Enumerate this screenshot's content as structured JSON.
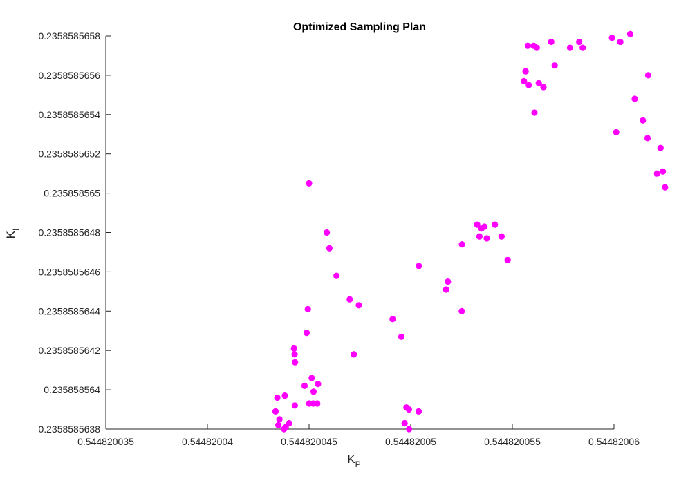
{
  "chart_data": {
    "type": "scatter",
    "title": "Optimized Sampling Plan",
    "xlabel": {
      "main": "K",
      "sub": "P"
    },
    "ylabel": {
      "main": "K",
      "sub": "I"
    },
    "xlim": [
      0.544820035,
      0.54482006
    ],
    "ylim": [
      0.2358585638,
      0.2358585658
    ],
    "x_ticks": [
      {
        "value": 0.544820035,
        "label": "0.544820035"
      },
      {
        "value": 0.54482004,
        "label": "0.54482004"
      },
      {
        "value": 0.544820045,
        "label": "0.544820045"
      },
      {
        "value": 0.54482005,
        "label": "0.54482005"
      },
      {
        "value": 0.544820055,
        "label": "0.544820055"
      },
      {
        "value": 0.54482006,
        "label": "0.54482006"
      }
    ],
    "y_ticks": [
      {
        "value": 0.2358585638,
        "label": "0.2358585638"
      },
      {
        "value": 0.235858564,
        "label": "0.235858564"
      },
      {
        "value": 0.2358585642,
        "label": "0.2358585642"
      },
      {
        "value": 0.2358585644,
        "label": "0.2358585644"
      },
      {
        "value": 0.2358585646,
        "label": "0.2358585646"
      },
      {
        "value": 0.2358585648,
        "label": "0.2358585648"
      },
      {
        "value": 0.235858565,
        "label": "0.235858565"
      },
      {
        "value": 0.2358585652,
        "label": "0.2358585652"
      },
      {
        "value": 0.2358585654,
        "label": "0.2358585654"
      },
      {
        "value": 0.2358585656,
        "label": "0.2358585656"
      },
      {
        "value": 0.2358585658,
        "label": "0.2358585658"
      }
    ],
    "grid": false,
    "marker_color": "#ff00ff",
    "points": {
      "x_offset": 0.544820035,
      "y_offset": 0.2358585638,
      "scale_note": "dx in units of 1e-9, dy in units of 1e-10",
      "dx": [
        10.87,
        11.0,
        11.35,
        12.0,
        12.45,
        14.11,
        14.54,
        12.2,
        10.13,
        10.44,
        9.88,
        9.94,
        10.0,
        9.26,
        9.29,
        9.31,
        8.81,
        8.44,
        8.35,
        8.54,
        9.02,
        8.77,
        8.49,
        8.85,
        9.3,
        9.78,
        10.22,
        10.4,
        10.2,
        10.01,
        14.7,
        14.91,
        14.79,
        14.92,
        15.39,
        15.4,
        16.74,
        16.83,
        17.51,
        17.52,
        18.27,
        18.48,
        18.38,
        18.63,
        18.74,
        19.14,
        19.47,
        19.77,
        20.76,
        21.2,
        21.05,
        21.91,
        20.65,
        20.57,
        22.08,
        20.81,
        21.3,
        21.53,
        21.09,
        23.29,
        23.46,
        22.84,
        27.12,
        27.51,
        26.65,
        27.29,
        27.4,
        31.82,
        32.35,
        25.31,
        24.9,
        25.8,
        26.68,
        25.11,
        26.02,
        26.42,
        30.22,
        29.32,
        29.07
      ],
      "dy": [
        10.0,
        9.2,
        7.8,
        6.6,
        6.3,
        5.6,
        4.7,
        3.8,
        2.6,
        2.3,
        4.9,
        6.1,
        12.5,
        4.1,
        3.8,
        3.4,
        1.7,
        1.6,
        0.9,
        0.5,
        0.3,
        0.0,
        0.2,
        0.1,
        1.2,
        2.2,
        1.9,
        1.3,
        1.3,
        1.3,
        0.3,
        1.0,
        1.1,
        0.0,
        0.9,
        8.3,
        7.1,
        7.5,
        6.0,
        9.4,
        10.4,
        10.2,
        9.8,
        10.3,
        9.7,
        10.4,
        9.8,
        8.6,
        19.5,
        19.4,
        19.5,
        19.7,
        18.2,
        17.7,
        18.5,
        17.5,
        17.6,
        17.4,
        16.1,
        19.7,
        19.4,
        19.4,
        13.0,
        12.3,
        14.8,
        14.3,
        13.1,
        16.2,
        18.8,
        19.7,
        19.9,
        20.1,
        18.0,
        15.1,
        16.8,
        15.7,
        16.1,
        15.4,
        16.2
      ]
    }
  }
}
